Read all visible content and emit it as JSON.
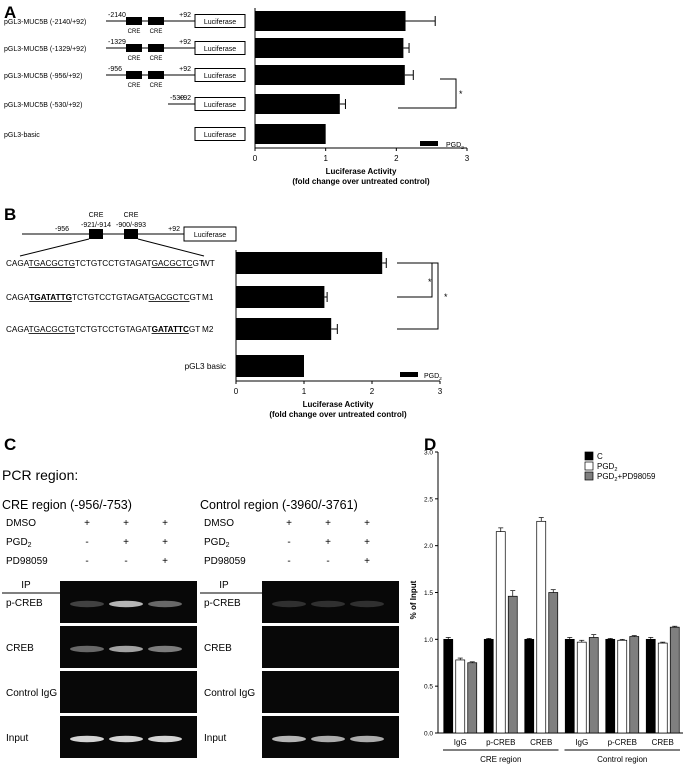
{
  "panels": {
    "a": "A",
    "b": "B",
    "c": "C",
    "d": "D"
  },
  "panel_a": {
    "constructs": [
      {
        "label": "pGL3-MUC5B (-2140/+92)",
        "start": "-2140",
        "end": "+92",
        "cre": [
          "CRE",
          "CRE"
        ]
      },
      {
        "label": "pGL3-MUC5B (-1329/+92)",
        "start": "-1329",
        "end": "+92",
        "cre": [
          "CRE",
          "CRE"
        ]
      },
      {
        "label": "pGL3-MUC5B (-956/+92)",
        "start": "-956",
        "end": "+92",
        "cre": [
          "CRE",
          "CRE"
        ]
      },
      {
        "label": "pGL3-MUC5B (-530/+92)",
        "start": "-530",
        "end": "+92",
        "cre": []
      },
      {
        "label": "pGL3-basic",
        "start": "",
        "end": "",
        "cre": []
      }
    ],
    "reporter": "Luciferase",
    "sig": "*",
    "legend": "PGD2"
  },
  "panel_b": {
    "schematic": {
      "start": "-956",
      "end": "+92",
      "cre1": {
        "name": "CRE",
        "range": "-921/-914"
      },
      "cre2": {
        "name": "CRE",
        "range": "-900/-893"
      },
      "reporter": "Luciferase"
    },
    "sequences": [
      {
        "seg": [
          "CAGA",
          "TGACGCTG",
          "TCTGTCCTGTAGAT",
          "GACGCTC",
          "GT"
        ],
        "name": "WT"
      },
      {
        "seg": [
          "CAGA",
          "TGATATTG",
          "TCTGTCCTGTAGAT",
          "GACGCTC",
          "GT"
        ],
        "name": "M1"
      },
      {
        "seg": [
          "CAGA",
          "TGACGCTG",
          "TCTGTCCTGTAGAT",
          "GATATTC",
          "GT"
        ],
        "name": "M2"
      },
      {
        "seg": [
          "",
          "",
          "pGL3 basic",
          "",
          ""
        ],
        "name": ""
      }
    ],
    "sig": [
      "*",
      "*"
    ],
    "legend": "PGD2"
  },
  "panel_c": {
    "pcr_region": "PCR region:",
    "regions": [
      {
        "title": "CRE region (-956/-753)"
      },
      {
        "title": "Control region (-3960/-3761)"
      }
    ],
    "treatments": [
      {
        "label": "DMSO",
        "signs": [
          "+",
          "+",
          "+"
        ]
      },
      {
        "label": "PGD2",
        "signs": [
          "-",
          "+",
          "+"
        ]
      },
      {
        "label": "PD98059",
        "signs": [
          "-",
          "-",
          "+"
        ]
      }
    ],
    "ip_label": "IP",
    "rows": [
      "p-CREB",
      "CREB",
      "Control IgG",
      "Input"
    ],
    "cre_bands": [
      [
        0.15,
        0.75,
        0.35
      ],
      [
        0.35,
        0.65,
        0.45
      ],
      [
        0,
        0,
        0
      ],
      [
        0.9,
        0.9,
        0.9
      ]
    ],
    "ctrl_bands": [
      [
        0.06,
        0.06,
        0.06
      ],
      [
        0,
        0,
        0
      ],
      [
        0,
        0,
        0
      ],
      [
        0.75,
        0.7,
        0.7
      ]
    ]
  },
  "chart_data": [
    {
      "type": "bar",
      "panel": "A",
      "orientation": "horizontal",
      "categories": [
        "pGL3-MUC5B (-2140/+92)",
        "pGL3-MUC5B (-1329/+92)",
        "pGL3-MUC5B (-956/+92)",
        "pGL3-MUC5B (-530/+92)",
        "pGL3-basic"
      ],
      "series": [
        {
          "name": "PGD2",
          "values": [
            2.13,
            2.1,
            2.12,
            1.2,
            1.0
          ],
          "errors": [
            0.42,
            0.08,
            0.12,
            0.08,
            0
          ]
        }
      ],
      "xlim": [
        0,
        3
      ],
      "xticks": [
        "0",
        "1",
        "2",
        "3"
      ],
      "xlabel": "Luciferase Activity",
      "xlabel2": "(fold change over untreated control)",
      "legend": "bottom-right",
      "color": "#000000"
    },
    {
      "type": "bar",
      "panel": "B",
      "orientation": "horizontal",
      "categories": [
        "WT",
        "M1",
        "M2",
        "pGL3 basic"
      ],
      "series": [
        {
          "name": "PGD2",
          "values": [
            2.15,
            1.3,
            1.4,
            1.0
          ],
          "errors": [
            0.06,
            0.04,
            0.09,
            0
          ]
        }
      ],
      "xlim": [
        0,
        3
      ],
      "xticks": [
        "0",
        "1",
        "2",
        "3"
      ],
      "xlabel": "Luciferase Activity",
      "xlabel2": "(fold change over untreated control)",
      "legend": "bottom-right",
      "color": "#000000"
    },
    {
      "type": "bar",
      "panel": "D",
      "categories": [
        "IgG",
        "p-CREB",
        "CREB",
        "IgG",
        "p-CREB",
        "CREB"
      ],
      "groups": [
        "CRE region",
        "Control region"
      ],
      "series": [
        {
          "name": "C",
          "values": [
            1.0,
            1.0,
            1.0,
            1.0,
            1.0,
            1.0
          ],
          "errors": [
            0.02,
            0.01,
            0.01,
            0.02,
            0.01,
            0.02
          ],
          "color": "#000000"
        },
        {
          "name": "PGD2",
          "values": [
            0.78,
            2.15,
            2.26,
            0.97,
            0.99,
            0.96
          ],
          "errors": [
            0.02,
            0.04,
            0.04,
            0.02,
            0.01,
            0.01
          ],
          "color": "#ffffff"
        },
        {
          "name": "PGD2+PD98059",
          "values": [
            0.75,
            1.46,
            1.5,
            1.02,
            1.03,
            1.13
          ],
          "errors": [
            0.01,
            0.06,
            0.03,
            0.03,
            0.01,
            0.01
          ],
          "color": "#7f7f7f"
        }
      ],
      "ylim": [
        0,
        3.0
      ],
      "yticks": [
        "0.0",
        "0.5",
        "1.0",
        "1.5",
        "2.0",
        "2.5",
        "3.0"
      ],
      "ylabel": "% of Input",
      "legend": "top-right"
    }
  ]
}
